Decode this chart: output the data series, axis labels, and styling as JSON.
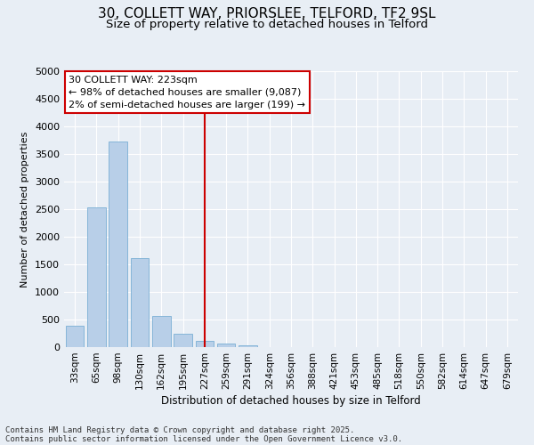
{
  "title1": "30, COLLETT WAY, PRIORSLEE, TELFORD, TF2 9SL",
  "title2": "Size of property relative to detached houses in Telford",
  "xlabel": "Distribution of detached houses by size in Telford",
  "ylabel": "Number of detached properties",
  "categories": [
    "33sqm",
    "65sqm",
    "98sqm",
    "130sqm",
    "162sqm",
    "195sqm",
    "227sqm",
    "259sqm",
    "291sqm",
    "324sqm",
    "356sqm",
    "388sqm",
    "421sqm",
    "453sqm",
    "485sqm",
    "518sqm",
    "550sqm",
    "582sqm",
    "614sqm",
    "647sqm",
    "679sqm"
  ],
  "values": [
    380,
    2530,
    3720,
    1620,
    560,
    240,
    110,
    70,
    40,
    0,
    0,
    0,
    0,
    0,
    0,
    0,
    0,
    0,
    0,
    0,
    0
  ],
  "bar_color": "#b8cfe8",
  "bar_edge_color": "#7aafd4",
  "highlight_index": 6,
  "highlight_line_color": "#cc0000",
  "annotation_line1": "30 COLLETT WAY: 223sqm",
  "annotation_line2": "← 98% of detached houses are smaller (9,087)",
  "annotation_line3": "2% of semi-detached houses are larger (199) →",
  "annotation_box_color": "#cc0000",
  "annotation_bg": "#ffffff",
  "ylim": [
    0,
    5000
  ],
  "yticks": [
    0,
    500,
    1000,
    1500,
    2000,
    2500,
    3000,
    3500,
    4000,
    4500,
    5000
  ],
  "background_color": "#e8eef5",
  "footer1": "Contains HM Land Registry data © Crown copyright and database right 2025.",
  "footer2": "Contains public sector information licensed under the Open Government Licence v3.0.",
  "title1_fontsize": 11,
  "title2_fontsize": 9.5,
  "xlabel_fontsize": 8.5,
  "ylabel_fontsize": 8,
  "tick_fontsize": 7.5,
  "footer_fontsize": 6.5,
  "annotation_fontsize": 8
}
